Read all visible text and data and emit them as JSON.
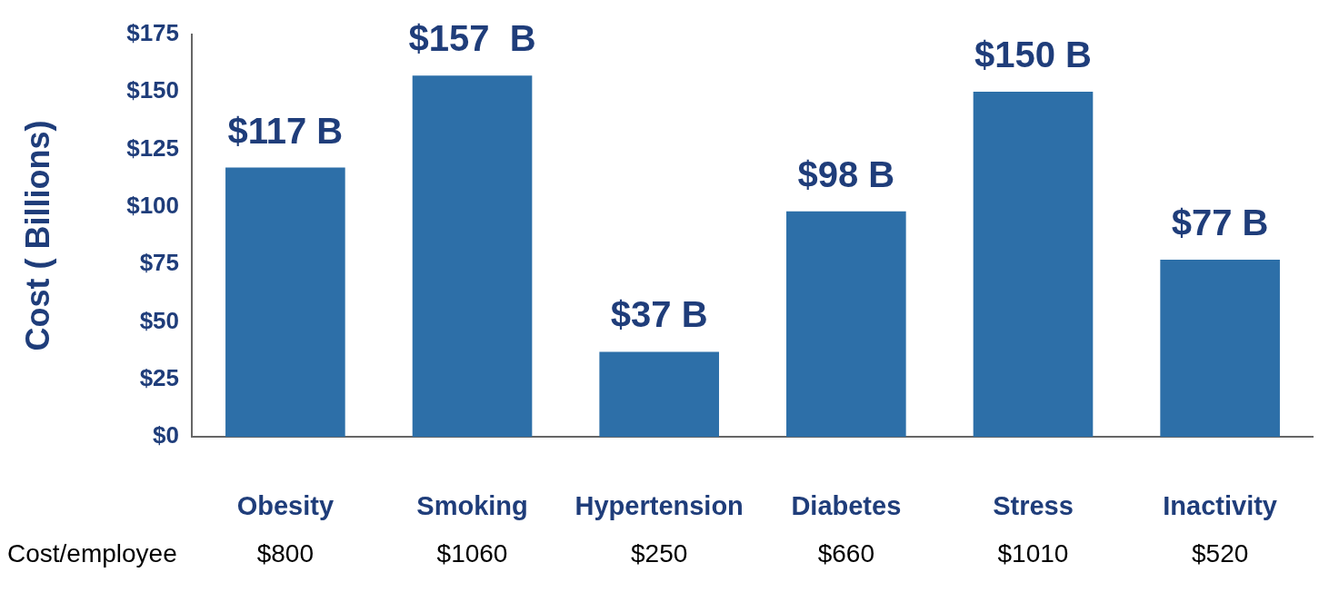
{
  "chart_data": {
    "type": "bar",
    "ylabel": "Cost ( Billions)",
    "categories": [
      "Obesity",
      "Smoking",
      "Hypertension",
      "Diabetes",
      "Stress",
      "Inactivity"
    ],
    "values": [
      117,
      157,
      37,
      98,
      150,
      77
    ],
    "value_labels": [
      "$117 B",
      "$157  B",
      "$37 B",
      "$98 B",
      "$150 B",
      "$77 B"
    ],
    "color": "#2d6fa8",
    "ylim": [
      0,
      175
    ],
    "yticks": [
      {
        "value": 0,
        "label": "$0"
      },
      {
        "value": 25,
        "label": "$25"
      },
      {
        "value": 50,
        "label": "$50"
      },
      {
        "value": 75,
        "label": "$75"
      },
      {
        "value": 100,
        "label": "$100"
      },
      {
        "value": 125,
        "label": "$125"
      },
      {
        "value": 150,
        "label": "$150"
      },
      {
        "value": 175,
        "label": "$175"
      }
    ],
    "grid": false,
    "legend": false,
    "annotations": [
      "Cost/employee",
      "$800",
      "$1060",
      "$250",
      "$660",
      "$1010",
      "$520"
    ]
  }
}
